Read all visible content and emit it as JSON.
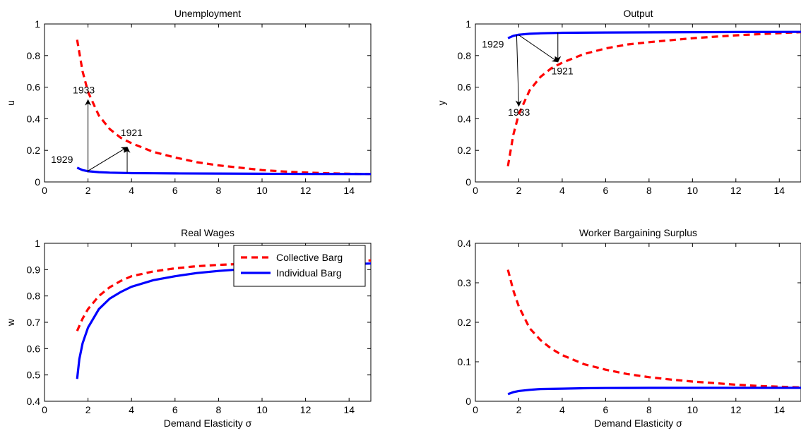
{
  "colors": {
    "collective": "#ff0000",
    "individual": "#0000ff",
    "axis": "#000000"
  },
  "chart_data": [
    {
      "id": "unemployment",
      "type": "line",
      "title": "Unemployment",
      "xlabel": "",
      "ylabel": "u",
      "xlim": [
        0,
        15
      ],
      "ylim": [
        0,
        1
      ],
      "xticks": [
        0,
        2,
        4,
        6,
        8,
        10,
        12,
        14
      ],
      "yticks": [
        0,
        0.2,
        0.4,
        0.6,
        0.8,
        1
      ],
      "yticklabels": [
        "0",
        "0.2",
        "0.4",
        "0.6",
        "0.8",
        "1"
      ],
      "series": [
        {
          "key": "collective",
          "dash": true,
          "x": [
            1.5,
            1.75,
            2,
            2.5,
            3,
            3.5,
            4,
            5,
            6,
            7,
            8,
            9,
            10,
            11,
            12,
            13,
            14,
            15
          ],
          "y": [
            0.9,
            0.7,
            0.57,
            0.42,
            0.335,
            0.28,
            0.245,
            0.19,
            0.155,
            0.125,
            0.105,
            0.09,
            0.075,
            0.066,
            0.06,
            0.055,
            0.052,
            0.05
          ]
        },
        {
          "key": "individual",
          "dash": false,
          "x": [
            1.5,
            1.75,
            2,
            2.5,
            3,
            4,
            5,
            6,
            8,
            10,
            12,
            15
          ],
          "y": [
            0.09,
            0.075,
            0.068,
            0.062,
            0.059,
            0.056,
            0.055,
            0.054,
            0.053,
            0.052,
            0.051,
            0.05
          ]
        }
      ],
      "annotations": [
        {
          "text": "1933",
          "arrow_from": [
            2.0,
            0.06
          ],
          "arrow_to": [
            2.0,
            0.52
          ],
          "label_at": [
            1.3,
            0.56
          ]
        },
        {
          "text": "1929",
          "arrow_from": [
            2.0,
            0.07
          ],
          "arrow_to": [
            3.8,
            0.22
          ],
          "label_at": [
            0.3,
            0.12
          ]
        },
        {
          "text": "1921",
          "arrow_from": [
            3.8,
            0.06
          ],
          "arrow_to": [
            3.8,
            0.22
          ],
          "label_at": [
            3.5,
            0.29
          ]
        }
      ]
    },
    {
      "id": "output",
      "type": "line",
      "title": "Output",
      "xlabel": "",
      "ylabel": "y",
      "xlim": [
        0,
        15
      ],
      "ylim": [
        0,
        1
      ],
      "xticks": [
        0,
        2,
        4,
        6,
        8,
        10,
        12,
        14
      ],
      "yticks": [
        0,
        0.2,
        0.4,
        0.6,
        0.8,
        1
      ],
      "yticklabels": [
        "0",
        "0.2",
        "0.4",
        "0.6",
        "0.8",
        "1"
      ],
      "series": [
        {
          "key": "collective",
          "dash": true,
          "x": [
            1.5,
            1.75,
            2,
            2.5,
            3,
            3.5,
            4,
            5,
            6,
            7,
            8,
            10,
            12,
            14,
            15
          ],
          "y": [
            0.1,
            0.3,
            0.43,
            0.58,
            0.665,
            0.72,
            0.755,
            0.81,
            0.845,
            0.87,
            0.885,
            0.91,
            0.928,
            0.942,
            0.948
          ]
        },
        {
          "key": "individual",
          "dash": false,
          "x": [
            1.5,
            1.75,
            2,
            2.5,
            3,
            4,
            6,
            8,
            10,
            12,
            15
          ],
          "y": [
            0.91,
            0.925,
            0.932,
            0.938,
            0.941,
            0.944,
            0.946,
            0.947,
            0.948,
            0.949,
            0.95
          ]
        }
      ],
      "annotations": [
        {
          "text": "1929",
          "arrow_from": [
            2.0,
            0.93
          ],
          "arrow_to": [
            3.8,
            0.76
          ],
          "label_at": [
            0.3,
            0.85
          ]
        },
        {
          "text": "1933",
          "arrow_from": [
            1.9,
            0.93
          ],
          "arrow_to": [
            2.0,
            0.48
          ],
          "label_at": [
            1.5,
            0.42
          ]
        },
        {
          "text": "1921",
          "arrow_from": [
            3.8,
            0.945
          ],
          "arrow_to": [
            3.8,
            0.76
          ],
          "label_at": [
            3.5,
            0.68
          ]
        }
      ]
    },
    {
      "id": "real-wages",
      "type": "line",
      "title": "Real Wages",
      "xlabel": "Demand Elasticity σ",
      "ylabel": "w",
      "xlim": [
        0,
        15
      ],
      "ylim": [
        0.4,
        1
      ],
      "xticks": [
        0,
        2,
        4,
        6,
        8,
        10,
        12,
        14
      ],
      "yticks": [
        0.4,
        0.5,
        0.6,
        0.7,
        0.8,
        0.9,
        1
      ],
      "yticklabels": [
        "0.4",
        "0.5",
        "0.6",
        "0.7",
        "0.8",
        "0.9",
        "1"
      ],
      "legend": {
        "position": "top-right",
        "entries": [
          "Collective Barg",
          "Individual Barg"
        ]
      },
      "series": [
        {
          "key": "collective",
          "name": "Collective Barg",
          "dash": true,
          "x": [
            1.5,
            1.75,
            2,
            2.5,
            3,
            3.5,
            4,
            5,
            6,
            7,
            8,
            10,
            12,
            14,
            15
          ],
          "y": [
            0.667,
            0.714,
            0.75,
            0.8,
            0.833,
            0.857,
            0.875,
            0.893,
            0.905,
            0.913,
            0.918,
            0.925,
            0.93,
            0.933,
            0.935
          ]
        },
        {
          "key": "individual",
          "name": "Individual Barg",
          "dash": false,
          "x": [
            1.5,
            1.6,
            1.75,
            2,
            2.5,
            3,
            3.5,
            4,
            5,
            6,
            7,
            8,
            10,
            12,
            14,
            15
          ],
          "y": [
            0.485,
            0.56,
            0.62,
            0.68,
            0.75,
            0.79,
            0.815,
            0.835,
            0.86,
            0.875,
            0.887,
            0.895,
            0.907,
            0.915,
            0.921,
            0.923
          ]
        }
      ]
    },
    {
      "id": "worker-bargaining-surplus",
      "type": "line",
      "title": "Worker Bargaining Surplus",
      "xlabel": "Demand Elasticity σ",
      "ylabel": "",
      "xlim": [
        0,
        15
      ],
      "ylim": [
        0,
        0.4
      ],
      "xticks": [
        0,
        2,
        4,
        6,
        8,
        10,
        12,
        14
      ],
      "yticks": [
        0,
        0.1,
        0.2,
        0.3,
        0.4
      ],
      "yticklabels": [
        "0",
        "0.1",
        "0.2",
        "0.3",
        "0.4"
      ],
      "series": [
        {
          "key": "collective",
          "dash": true,
          "x": [
            1.5,
            1.75,
            2,
            2.5,
            3,
            3.5,
            4,
            5,
            6,
            7,
            8,
            9,
            10,
            11,
            12,
            13,
            14,
            15
          ],
          "y": [
            0.333,
            0.28,
            0.24,
            0.185,
            0.155,
            0.133,
            0.117,
            0.094,
            0.08,
            0.069,
            0.061,
            0.055,
            0.05,
            0.046,
            0.042,
            0.039,
            0.037,
            0.035
          ]
        },
        {
          "key": "individual",
          "dash": false,
          "x": [
            1.5,
            1.75,
            2,
            2.5,
            3,
            4,
            5,
            6,
            8,
            10,
            12,
            15
          ],
          "y": [
            0.018,
            0.023,
            0.026,
            0.029,
            0.031,
            0.032,
            0.033,
            0.0335,
            0.034,
            0.034,
            0.034,
            0.034
          ]
        }
      ]
    }
  ]
}
